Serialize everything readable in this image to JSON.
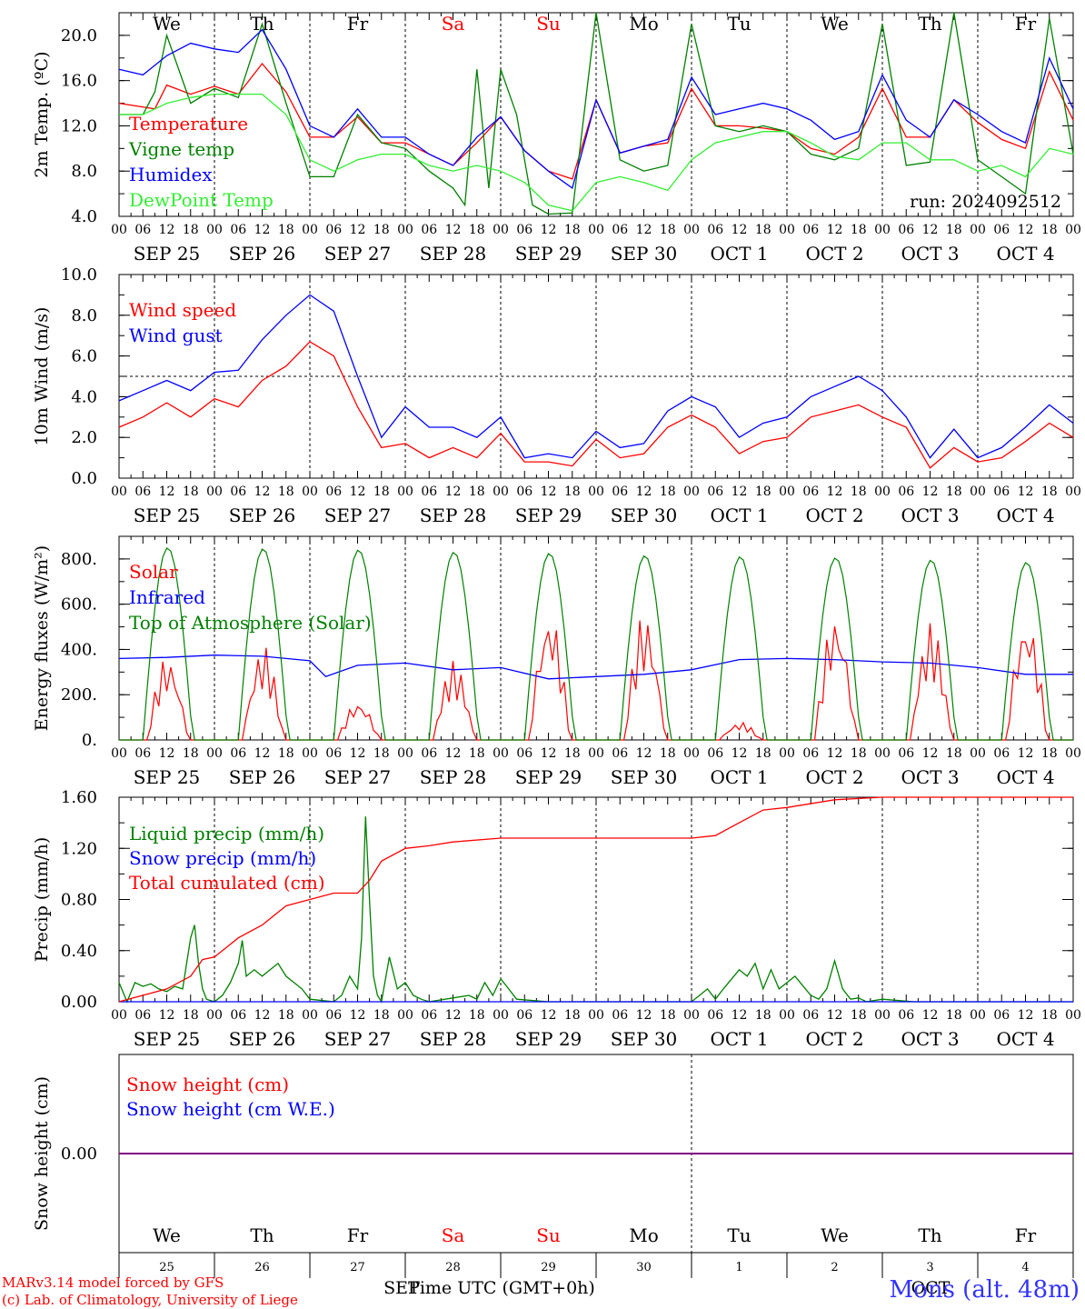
{
  "run_label": "run: 2024092512",
  "colors": {
    "red": "#ff0000",
    "darkgreen": "#008000",
    "lightgreen": "#33ee33",
    "blue": "#0000ff",
    "purple": "#800080",
    "black": "#000000"
  },
  "date_labels": [
    "SEP 25",
    "SEP 26",
    "SEP 27",
    "SEP 28",
    "SEP 29",
    "SEP 30",
    "OCT  1",
    "OCT  2",
    "OCT  3",
    "OCT  4"
  ],
  "hour_ticks": [
    "00",
    "06",
    "12",
    "18"
  ],
  "weekdays": [
    "We",
    "Th",
    "Fr",
    "Sa",
    "Su",
    "Mo",
    "Tu",
    "We",
    "Th",
    "Fr"
  ],
  "weekend_index": [
    3,
    4
  ],
  "day_numbers": [
    "25",
    "26",
    "27",
    "28",
    "29",
    "30",
    "1",
    "2",
    "3",
    "4"
  ],
  "bottom_month_left": "SEP",
  "bottom_month_right": "OCT",
  "x_axis_title": "Time UTC (GMT+0h)",
  "footer": {
    "line1": "MARv3.14 model forced by GFS",
    "line2": "(c) Lab. of Climatology, University of Liege",
    "location": "Mons (alt. 48m)"
  },
  "chart_data": [
    {
      "type": "line",
      "ylabel": "2m Temp. (ºC)",
      "ylim": [
        4,
        22
      ],
      "yticks": [
        "4.0",
        "8.0",
        "12.0",
        "16.0",
        "20.0"
      ],
      "ytick_values": [
        4,
        8,
        12,
        16,
        20
      ],
      "x_unit": "hours since 2024-09-25 00 UTC",
      "series": [
        {
          "name": "Temperature",
          "color": "#ff0000",
          "x": [
            0,
            9,
            12,
            18,
            24,
            30,
            36,
            42,
            48,
            54,
            60,
            66,
            72,
            78,
            84,
            90,
            96,
            102,
            108,
            114,
            120,
            126,
            132,
            138,
            144,
            150,
            156,
            162,
            168,
            174,
            180,
            186,
            192,
            198,
            204,
            210,
            216,
            222,
            228,
            234,
            240
          ],
          "y": [
            14,
            13.5,
            15.6,
            14.8,
            15.5,
            14.8,
            17.5,
            15,
            11,
            11,
            12.8,
            10.5,
            10.5,
            9.5,
            8.5,
            10.5,
            12.8,
            9.8,
            8,
            7.3,
            14.3,
            9.6,
            10.2,
            10.5,
            15.3,
            12,
            12,
            11.8,
            11.5,
            10,
            9.5,
            11,
            15.3,
            11,
            11,
            14.3,
            12.3,
            10.8,
            10,
            16.8,
            12.5
          ]
        },
        {
          "name": "Vigne temp",
          "color": "#008000",
          "x": [
            0,
            6,
            9,
            12,
            18,
            24,
            30,
            36,
            42,
            48,
            54,
            60,
            66,
            72,
            78,
            84,
            87,
            90,
            93,
            96,
            100,
            104,
            108,
            114,
            120,
            126,
            132,
            138,
            144,
            150,
            156,
            162,
            168,
            174,
            180,
            186,
            192,
            198,
            204,
            210,
            216,
            222,
            228,
            234,
            240
          ],
          "y": [
            13,
            13,
            15,
            20,
            14,
            15.3,
            14.5,
            21,
            14,
            7.5,
            7.5,
            13,
            10.5,
            10,
            8,
            6.5,
            5,
            17,
            6.5,
            17,
            13,
            5,
            4.2,
            4.3,
            22,
            9,
            8,
            8.5,
            21,
            12,
            11.5,
            12,
            11.5,
            9.5,
            9,
            10,
            21,
            8.5,
            8.8,
            22,
            9,
            7.5,
            6,
            21.5,
            9.5
          ]
        },
        {
          "name": "Humidex",
          "color": "#0000ff",
          "x": [
            0,
            6,
            12,
            18,
            24,
            30,
            36,
            42,
            48,
            54,
            60,
            66,
            72,
            78,
            84,
            90,
            96,
            102,
            108,
            114,
            120,
            126,
            132,
            138,
            144,
            150,
            156,
            162,
            168,
            174,
            180,
            186,
            192,
            198,
            204,
            210,
            216,
            222,
            228,
            234,
            240
          ],
          "y": [
            17,
            16.5,
            18.2,
            19.3,
            18.8,
            18.5,
            20.5,
            17,
            12,
            11,
            13.5,
            11,
            11,
            9.5,
            8.5,
            11,
            12.8,
            9.8,
            8,
            6.5,
            14.3,
            9.6,
            10.2,
            10.8,
            16.3,
            13,
            13.5,
            14,
            13.5,
            12.5,
            10.8,
            11.5,
            16.5,
            12.5,
            11,
            14.3,
            13,
            11.5,
            10.5,
            18,
            13.5
          ]
        },
        {
          "name": "DewPoint Temp",
          "color": "#33ee33",
          "x": [
            0,
            6,
            12,
            18,
            24,
            30,
            36,
            42,
            48,
            54,
            60,
            66,
            72,
            78,
            84,
            90,
            96,
            102,
            108,
            114,
            120,
            126,
            132,
            138,
            144,
            150,
            156,
            162,
            168,
            174,
            180,
            186,
            192,
            198,
            204,
            210,
            216,
            222,
            228,
            234,
            240
          ],
          "y": [
            13,
            13,
            14,
            14.5,
            14.8,
            14.8,
            14.8,
            13,
            9,
            8,
            9,
            9.5,
            9.5,
            8.5,
            8,
            8.5,
            8,
            7,
            5,
            4.5,
            7,
            7.5,
            7,
            6.3,
            9,
            10.5,
            11,
            11.5,
            11.5,
            10.5,
            9.3,
            9,
            10.5,
            10.5,
            9,
            9,
            8,
            8.5,
            7.5,
            10,
            9.5
          ]
        }
      ]
    },
    {
      "type": "line",
      "ylabel": "10m Wind (m/s)",
      "ylim": [
        0,
        10
      ],
      "yticks": [
        "0.0",
        "2.0",
        "4.0",
        "6.0",
        "8.0",
        "10.0"
      ],
      "ytick_values": [
        0,
        2,
        4,
        6,
        8,
        10
      ],
      "threshold": 5,
      "series": [
        {
          "name": "Wind speed",
          "color": "#ff0000",
          "x": [
            0,
            6,
            12,
            18,
            24,
            30,
            36,
            42,
            48,
            54,
            60,
            66,
            72,
            78,
            84,
            90,
            96,
            102,
            108,
            114,
            120,
            126,
            132,
            138,
            144,
            150,
            156,
            162,
            168,
            174,
            180,
            186,
            192,
            198,
            204,
            210,
            216,
            222,
            228,
            234,
            240
          ],
          "y": [
            2.5,
            3,
            3.7,
            3,
            3.9,
            3.5,
            4.8,
            5.5,
            6.7,
            6,
            3.5,
            1.5,
            1.7,
            1,
            1.5,
            1,
            2.2,
            0.8,
            0.8,
            0.6,
            1.9,
            1,
            1.2,
            2.5,
            3.1,
            2.5,
            1.2,
            1.8,
            2,
            3,
            3.3,
            3.6,
            3,
            2.5,
            0.5,
            1.5,
            0.8,
            1,
            1.8,
            2.7,
            2
          ]
        },
        {
          "name": "Wind gust",
          "color": "#0000ff",
          "x": [
            0,
            6,
            12,
            18,
            24,
            30,
            36,
            42,
            48,
            54,
            60,
            66,
            72,
            78,
            84,
            90,
            96,
            102,
            108,
            114,
            120,
            126,
            132,
            138,
            144,
            150,
            156,
            162,
            168,
            174,
            180,
            186,
            192,
            198,
            204,
            210,
            216,
            222,
            228,
            234,
            240
          ],
          "y": [
            3.8,
            4.3,
            4.8,
            4.3,
            5.2,
            5.3,
            6.8,
            8,
            9,
            8.2,
            5,
            2,
            3.5,
            2.5,
            2.5,
            2,
            3,
            1,
            1.2,
            1,
            2.3,
            1.5,
            1.7,
            3.3,
            4,
            3.5,
            2,
            2.7,
            3,
            4,
            4.5,
            5,
            4.3,
            3,
            1,
            2.4,
            1,
            1.5,
            2.5,
            3.6,
            2.7
          ]
        }
      ]
    },
    {
      "type": "line",
      "ylabel": "Energy fluxes (W/m²)",
      "ylim": [
        0,
        900
      ],
      "yticks": [
        "0.",
        "200.",
        "400.",
        "600.",
        "800."
      ],
      "ytick_values": [
        0,
        200,
        400,
        600,
        800
      ],
      "series": [
        {
          "name": "Solar",
          "color": "#ff0000",
          "day_peaks": [
            380,
            420,
            180,
            350,
            590,
            570,
            80,
            580,
            520,
            570
          ]
        },
        {
          "name": "Infrared",
          "color": "#0000ff",
          "x": [
            0,
            12,
            24,
            36,
            48,
            52,
            60,
            72,
            84,
            96,
            108,
            120,
            132,
            144,
            156,
            168,
            180,
            192,
            204,
            216,
            228,
            240
          ],
          "y": [
            360,
            365,
            375,
            370,
            350,
            280,
            330,
            340,
            310,
            320,
            270,
            280,
            290,
            310,
            355,
            360,
            355,
            345,
            340,
            320,
            290,
            290
          ]
        },
        {
          "name": "Top of Atmosphere (Solar)",
          "color": "#008000",
          "day_peaks": [
            850,
            845,
            840,
            830,
            825,
            815,
            810,
            805,
            795,
            785
          ]
        }
      ]
    },
    {
      "type": "line",
      "ylabel": "Precip (mm/h)",
      "ylim": [
        0,
        1.6
      ],
      "yticks": [
        "0.00",
        "0.40",
        "0.80",
        "1.20",
        "1.60"
      ],
      "ytick_values": [
        0,
        0.4,
        0.8,
        1.2,
        1.6
      ],
      "series": [
        {
          "name": "Liquid precip (mm/h)",
          "color": "#008000",
          "x": [
            0,
            2,
            4,
            6,
            8,
            10,
            12,
            14,
            16,
            18,
            19,
            20,
            21,
            22,
            24,
            26,
            28,
            30,
            31,
            32,
            34,
            36,
            38,
            40,
            42,
            44,
            46,
            48,
            54,
            56,
            58,
            60,
            61,
            62,
            63,
            64,
            65,
            66,
            68,
            70,
            72,
            74,
            76,
            78,
            84,
            88,
            90,
            92,
            94,
            96,
            98,
            100,
            108,
            144,
            146,
            148,
            150,
            152,
            156,
            158,
            160,
            162,
            164,
            166,
            170,
            174,
            176,
            178,
            180,
            182,
            184,
            186,
            188,
            192,
            200,
            240
          ],
          "y": [
            0.15,
            0,
            0.15,
            0.12,
            0.14,
            0.1,
            0.08,
            0.12,
            0.1,
            0.5,
            0.6,
            0.3,
            0.1,
            0.02,
            0,
            0.05,
            0.15,
            0.3,
            0.48,
            0.2,
            0.25,
            0.2,
            0.25,
            0.3,
            0.2,
            0.15,
            0.1,
            0.02,
            0,
            0.05,
            0.2,
            0.1,
            0.5,
            1.45,
            0.8,
            0.2,
            0.05,
            0,
            0.35,
            0.1,
            0.15,
            0.05,
            0.02,
            0,
            0.03,
            0.05,
            0.02,
            0.15,
            0.05,
            0.18,
            0.1,
            0.02,
            0,
            0,
            0.05,
            0.1,
            0.02,
            0.1,
            0.25,
            0.2,
            0.3,
            0.1,
            0.25,
            0.1,
            0.2,
            0.05,
            0.02,
            0.1,
            0.32,
            0.1,
            0.02,
            0.03,
            0,
            0.02,
            0,
            0
          ]
        },
        {
          "name": "Snow precip (mm/h)",
          "color": "#0000ff",
          "x": [
            0,
            240
          ],
          "y": [
            0,
            0
          ]
        },
        {
          "name": "Total cumulated (cm)",
          "color": "#ff0000",
          "x": [
            0,
            12,
            18,
            21,
            24,
            30,
            36,
            42,
            48,
            54,
            60,
            63,
            66,
            72,
            78,
            84,
            96,
            120,
            144,
            150,
            156,
            162,
            168,
            180,
            192,
            204,
            216,
            240
          ],
          "y": [
            0,
            0.1,
            0.2,
            0.33,
            0.35,
            0.5,
            0.6,
            0.75,
            0.8,
            0.85,
            0.85,
            0.95,
            1.1,
            1.2,
            1.22,
            1.25,
            1.28,
            1.28,
            1.28,
            1.3,
            1.4,
            1.5,
            1.52,
            1.58,
            1.6,
            1.6,
            1.6,
            1.6
          ]
        }
      ]
    },
    {
      "type": "line",
      "ylabel": "Snow height (cm)",
      "ylim": [
        -1,
        1
      ],
      "yticks": [
        "0.00"
      ],
      "ytick_values": [
        0
      ],
      "series": [
        {
          "name": "Snow height (cm)",
          "color": "#ff0000",
          "x": [
            0,
            240
          ],
          "y": [
            0,
            0
          ]
        },
        {
          "name": "Snow height (cm W.E.)",
          "color": "#0000ff",
          "x": [
            0,
            240
          ],
          "y": [
            0,
            0
          ]
        }
      ]
    }
  ]
}
